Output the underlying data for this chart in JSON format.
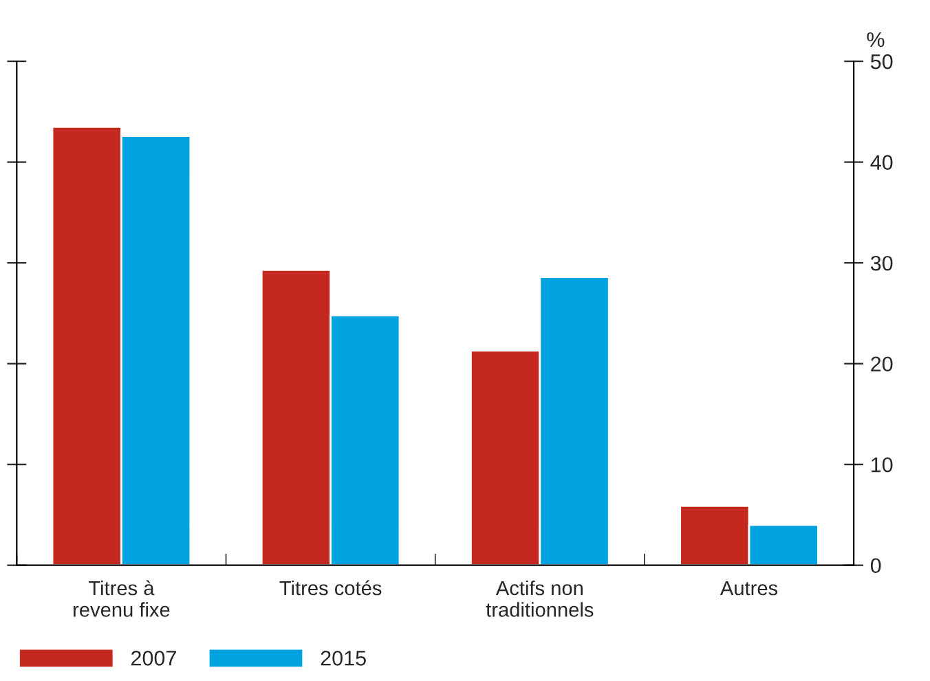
{
  "chart_data": {
    "type": "bar",
    "ylabel": "%",
    "categories": [
      "Titres à\nrevenu fixe",
      "Titres cotés",
      "Actifs non\ntraditionnels",
      "Autres"
    ],
    "series": [
      {
        "name": "2007",
        "color": "#c4281f",
        "values": [
          43.5,
          29.3,
          21.3,
          5.9
        ]
      },
      {
        "name": "2015",
        "color": "#00a3e0",
        "values": [
          42.6,
          24.8,
          28.6,
          4.0
        ]
      }
    ],
    "ylim": [
      0,
      50
    ],
    "yticks": [
      0,
      10,
      20,
      30,
      40,
      50
    ],
    "grid": false,
    "legend": "bottom left"
  }
}
